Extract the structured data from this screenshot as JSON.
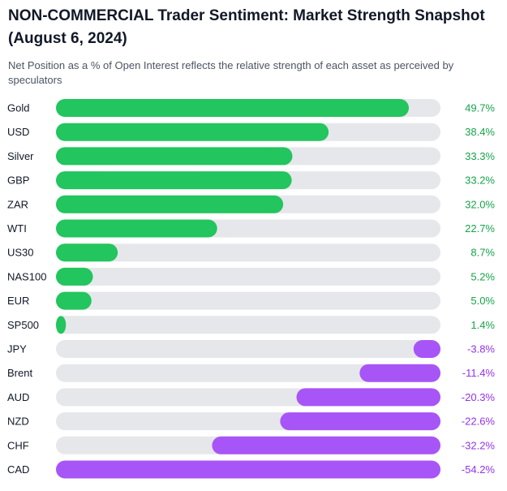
{
  "chart_data": {
    "type": "bar",
    "orientation": "horizontal",
    "title": "NON-COMMERCIAL Trader Sentiment: Market Strength Snapshot (August 6, 2024)",
    "subtitle": "Net Position as a % of Open Interest reflects the relative strength of each asset as perceived by speculators",
    "categories": [
      "Gold",
      "USD",
      "Silver",
      "GBP",
      "ZAR",
      "WTI",
      "US30",
      "NAS100",
      "EUR",
      "SP500",
      "JPY",
      "Brent",
      "AUD",
      "NZD",
      "CHF",
      "CAD"
    ],
    "values": [
      49.7,
      38.4,
      33.3,
      33.2,
      32.0,
      22.7,
      8.7,
      5.2,
      5.0,
      1.4,
      -3.8,
      -11.4,
      -20.3,
      -22.6,
      -32.2,
      -54.2
    ],
    "value_labels": [
      "49.7%",
      "38.4%",
      "33.3%",
      "33.2%",
      "32.0%",
      "22.7%",
      "8.7%",
      "5.2%",
      "5.0%",
      "1.4%",
      "-3.8%",
      "-11.4%",
      "-20.3%",
      "-22.6%",
      "-32.2%",
      "-54.2%"
    ],
    "colors": {
      "positive": "#22c55e",
      "negative": "#a855f7",
      "track": "#e5e7eb",
      "positive_text": "#16a34a",
      "negative_text": "#9333ea"
    },
    "positive_anchor": "left",
    "negative_anchor": "right",
    "grid": false,
    "legend": "none"
  }
}
